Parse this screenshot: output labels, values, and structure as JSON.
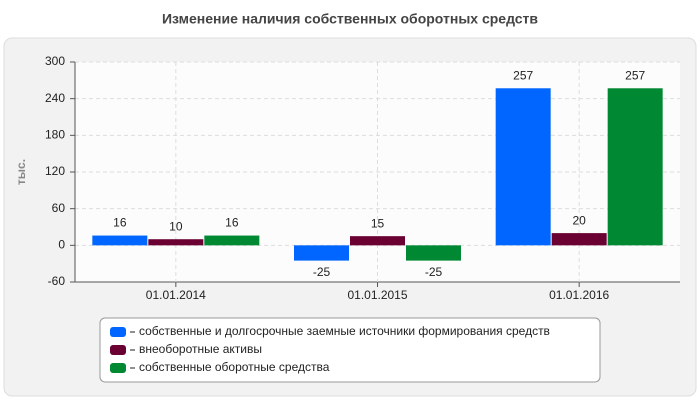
{
  "chart_data": {
    "type": "bar",
    "title": "Изменение наличия собственных оборотных средств",
    "y_label": "тыс.",
    "categories": [
      "01.01.2014",
      "01.01.2015",
      "01.01.2016"
    ],
    "series": [
      {
        "name": "собственные и долгосрочные заемные источники формирования средств",
        "color": "#0066ff",
        "values": [
          16,
          -25,
          257
        ]
      },
      {
        "name": "внеоборотные активы",
        "color": "#6b0033",
        "values": [
          10,
          15,
          20
        ]
      },
      {
        "name": "собственные оборотные средства",
        "color": "#008833",
        "values": [
          16,
          -25,
          257
        ]
      }
    ],
    "ylim": [
      -60,
      300
    ],
    "yticks": [
      -60,
      0,
      60,
      120,
      180,
      240,
      300
    ],
    "grid": true
  }
}
